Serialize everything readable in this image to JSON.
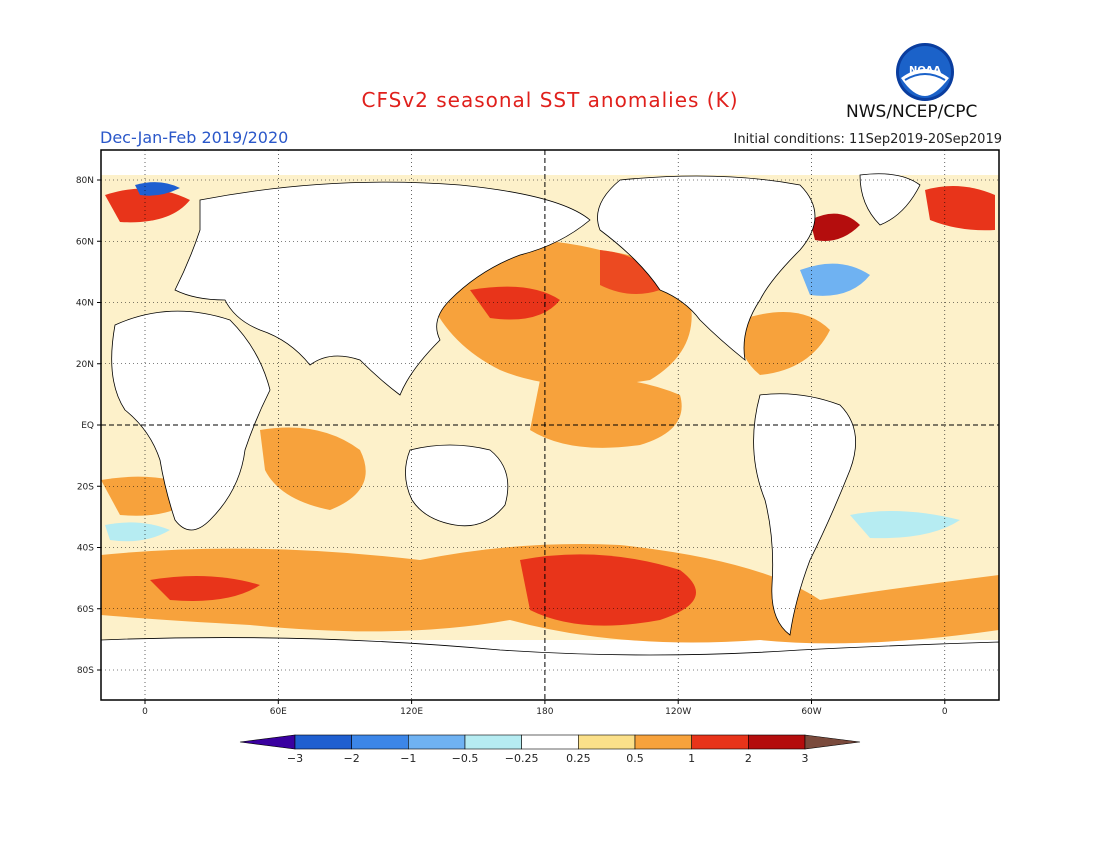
{
  "header": {
    "title": "CFSv2 seasonal SST anomalies (K)",
    "period": "Dec-Jan-Feb 2019/2020",
    "initial_conditions": "Initial conditions: 11Sep2019-20Sep2019",
    "agency": "NWS/NCEP/CPC",
    "logo_text": "NOAA"
  },
  "map": {
    "lat_labels": [
      "80N",
      "60N",
      "40N",
      "20N",
      "EQ",
      "20S",
      "40S",
      "60S",
      "80S"
    ],
    "lon_labels": [
      "0",
      "60E",
      "120E",
      "180",
      "120W",
      "60W",
      "0"
    ]
  },
  "colorbar": {
    "colors": [
      "#3a00a0",
      "#1f5fd0",
      "#3c86e8",
      "#6fb2f2",
      "#b6ecf2",
      "#ffffff",
      "#fbe08a",
      "#f7a23c",
      "#e8341a",
      "#b40d0d",
      "#7a4a3c"
    ],
    "ticks": [
      "-3",
      "-2",
      "-1",
      "-0.5",
      "-0.25",
      "0.25",
      "0.5",
      "1",
      "2",
      "3"
    ]
  },
  "colors": {
    "title": "#e0201c",
    "period": "#2a57c9",
    "ocean_warm_light": "#fbe08a",
    "ocean_warm": "#f7a23c",
    "ocean_hot": "#e8341a",
    "ocean_cool": "#6fb2f2"
  }
}
